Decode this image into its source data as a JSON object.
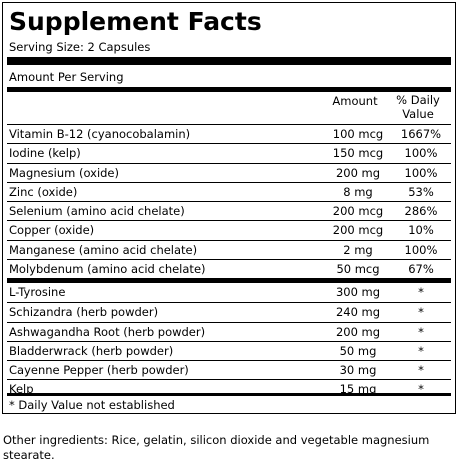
{
  "title": "Supplement Facts",
  "serving_size": "Serving Size: 2 Capsules",
  "amount_per_serving": "Amount Per Serving",
  "headers": {
    "amount": "Amount",
    "dv": "% Daily Value"
  },
  "vitamins_minerals": [
    {
      "name": "Vitamin B-12 (cyanocobalamin)",
      "amount": "100 mcg",
      "dv": "1667%"
    },
    {
      "name": "Iodine (kelp)",
      "amount": "150 mcg",
      "dv": "100%"
    },
    {
      "name": "Magnesium (oxide)",
      "amount": "200 mg",
      "dv": "100%"
    },
    {
      "name": "Zinc (oxide)",
      "amount": "8 mg",
      "dv": "53%"
    },
    {
      "name": "Selenium (amino acid chelate)",
      "amount": "200 mcg",
      "dv": "286%"
    },
    {
      "name": "Copper (oxide)",
      "amount": "200 mcg",
      "dv": "10%"
    },
    {
      "name": "Manganese (amino acid chelate)",
      "amount": "2 mg",
      "dv": "100%"
    },
    {
      "name": "Molybdenum (amino acid chelate)",
      "amount": "50 mcg",
      "dv": "67%"
    }
  ],
  "other_ingredients_list": [
    {
      "name": "L-Tyrosine",
      "amount": "300 mg",
      "dv": "*"
    },
    {
      "name": "Schizandra (herb powder)",
      "amount": "240 mg",
      "dv": "*"
    },
    {
      "name": "Ashwagandha Root (herb powder)",
      "amount": "200 mg",
      "dv": "*"
    },
    {
      "name": "Bladderwrack (herb powder)",
      "amount": "50 mg",
      "dv": "*"
    },
    {
      "name": "Cayenne Pepper (herb powder)",
      "amount": "30 mg",
      "dv": "*"
    },
    {
      "name": "Kelp",
      "amount": "15 mg",
      "dv": "*"
    }
  ],
  "footnote": "* Daily Value not established",
  "other_ingredients": "Other ingredients: Rice, gelatin, silicon dioxide and vegetable magnesium stearate."
}
